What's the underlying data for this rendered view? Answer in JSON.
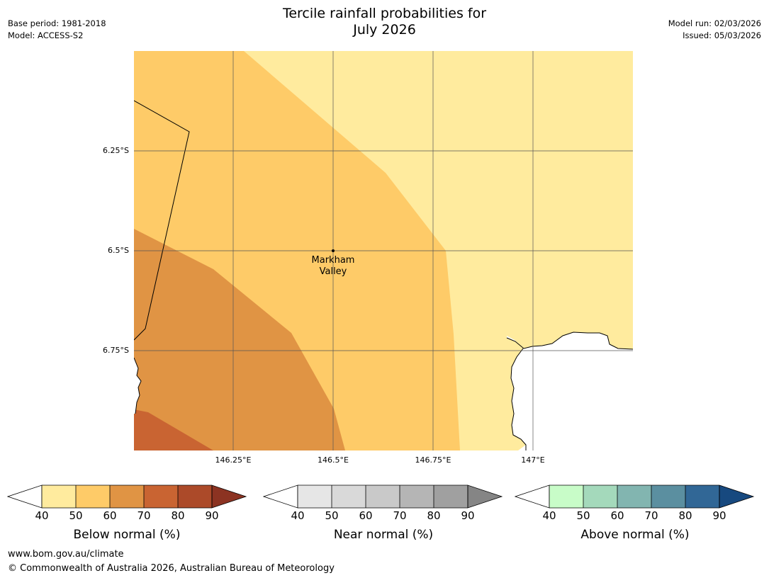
{
  "title": {
    "line1": "Tercile rainfall probabilities for",
    "line2": "July 2026"
  },
  "meta": {
    "base_period": "Base period: 1981-2018",
    "model": "Model: ACCESS-S2",
    "model_run": "Model run: 02/03/2026",
    "issued": "Issued: 05/03/2026"
  },
  "map": {
    "lat_labels": [
      "6.25°S",
      "6.5°S",
      "6.75°S"
    ],
    "lon_labels": [
      "146.25°E",
      "146.5°E",
      "146.75°E",
      "147°E"
    ],
    "place": {
      "line1": "Markham",
      "line2": "Valley"
    },
    "category_colors": {
      "below_40_50": "#ffeb9e",
      "below_50_60": "#fecb68",
      "below_60_70": "#e09444",
      "below_70_80": "#c96432",
      "ocean": "#ffffff"
    }
  },
  "colorbars": [
    {
      "title": "Below normal (%)",
      "ticks": [
        "40",
        "50",
        "60",
        "70",
        "80",
        "90"
      ],
      "colors": [
        "#ffffff",
        "#ffeb9e",
        "#fecb68",
        "#e09444",
        "#c96432",
        "#ac4a29",
        "#8c3322"
      ]
    },
    {
      "title": "Near normal (%)",
      "ticks": [
        "40",
        "50",
        "60",
        "70",
        "80",
        "90"
      ],
      "colors": [
        "#ffffff",
        "#e6e6e6",
        "#d9d9d9",
        "#c9c9c9",
        "#b5b5b5",
        "#a0a0a0",
        "#858585"
      ]
    },
    {
      "title": "Above normal (%)",
      "ticks": [
        "40",
        "50",
        "60",
        "70",
        "80",
        "90"
      ],
      "colors": [
        "#ffffff",
        "#c8fcc8",
        "#a4d9bb",
        "#82b5b0",
        "#5b8fa0",
        "#316796",
        "#17497f"
      ]
    }
  ],
  "footer": {
    "url": "www.bom.gov.au/climate",
    "copyright": "© Commonwealth of Australia 2026, Australian Bureau of Meteorology"
  }
}
